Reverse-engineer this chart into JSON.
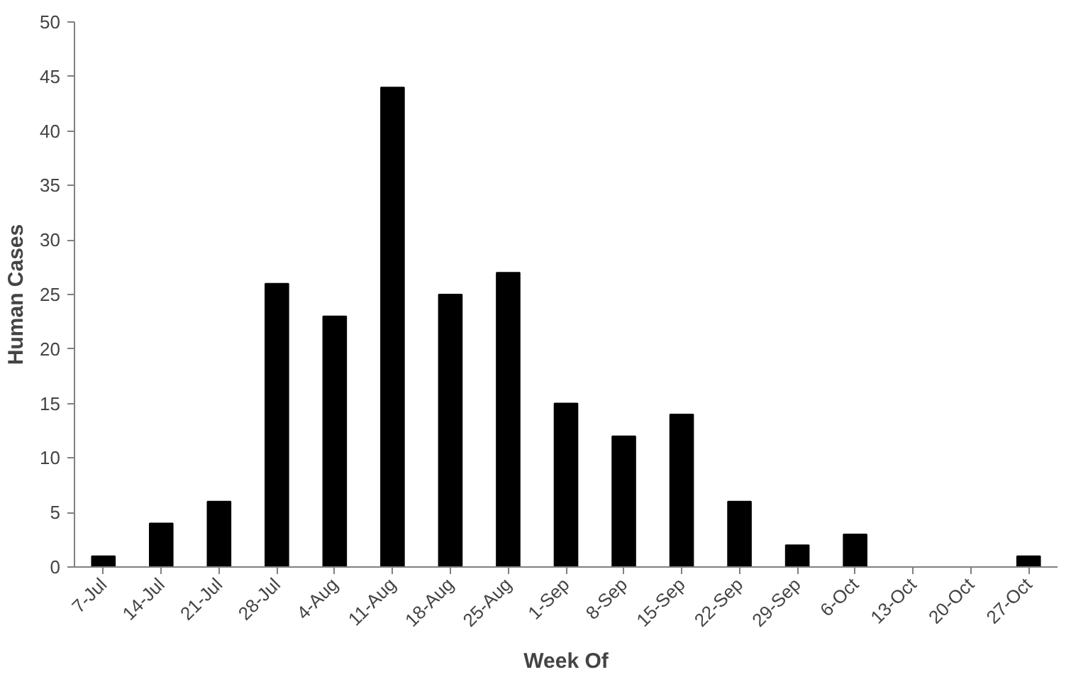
{
  "chart_data": {
    "type": "bar",
    "xlabel": "Week Of",
    "ylabel": "Human Cases",
    "categories": [
      "7-Jul",
      "14-Jul",
      "21-Jul",
      "28-Jul",
      "4-Aug",
      "11-Aug",
      "18-Aug",
      "25-Aug",
      "1-Sep",
      "8-Sep",
      "15-Sep",
      "22-Sep",
      "29-Sep",
      "6-Oct",
      "13-Oct",
      "20-Oct",
      "27-Oct"
    ],
    "values": [
      1,
      4,
      6,
      26,
      23,
      44,
      25,
      27,
      15,
      12,
      14,
      6,
      2,
      3,
      0,
      0,
      1
    ],
    "color": "#000000",
    "ylim": [
      0,
      50
    ],
    "yticks": [
      0,
      5,
      10,
      15,
      20,
      25,
      30,
      35,
      40,
      45,
      50
    ],
    "grid": false
  }
}
